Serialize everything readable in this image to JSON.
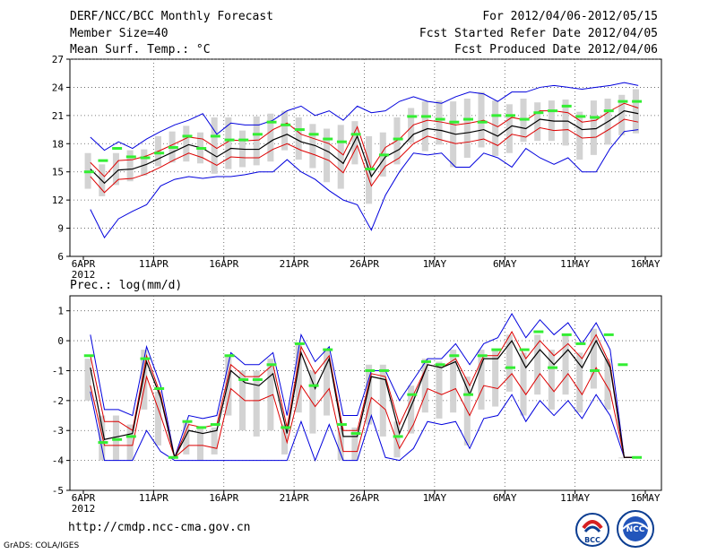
{
  "header": {
    "title": "DERF/NCC/BCC Monthly Forecast",
    "member_size": "Member Size=40",
    "variable": "Mean Surf. Temp.: °C",
    "period": "For 2012/04/06-2012/05/15",
    "started": "Fcst Started Refer Date 2012/04/05",
    "produced": "Fcst Produced Date 2012/04/06"
  },
  "footer": {
    "url": "http://cmdp.ncc-cma.gov.cn",
    "credit": "GrADS: COLA/IGES"
  },
  "logos": {
    "bcc_text": "BCC",
    "ncc_text": "NCC"
  },
  "colors": {
    "max_min": "#0000dd",
    "spread": "#dd0000",
    "mean": "#000000",
    "obs": "#33ee33",
    "box": "#d3d3d3",
    "grid": "#555555"
  },
  "chart_data": [
    {
      "type": "line",
      "panel": "temperature",
      "title": "",
      "xlabel": "",
      "ylabel": "",
      "ylim": [
        6,
        27
      ],
      "yticks": [
        6,
        9,
        12,
        15,
        18,
        21,
        24,
        27
      ],
      "x_tick_labels": [
        {
          "day": 0,
          "label": "6APR"
        },
        {
          "day": 5,
          "label": "11APR"
        },
        {
          "day": 10,
          "label": "16APR"
        },
        {
          "day": 15,
          "label": "21APR"
        },
        {
          "day": 20,
          "label": "26APR"
        },
        {
          "day": 25,
          "label": "1MAY"
        },
        {
          "day": 30,
          "label": "6MAY"
        },
        {
          "day": 35,
          "label": "11MAY"
        },
        {
          "day": 40,
          "label": "16MAY"
        }
      ],
      "year_label": "2012",
      "x_days": [
        0,
        1,
        2,
        3,
        4,
        5,
        6,
        7,
        8,
        9,
        10,
        11,
        12,
        13,
        14,
        15,
        16,
        17,
        18,
        19,
        20,
        21,
        22,
        23,
        24,
        25,
        26,
        27,
        28,
        29,
        30,
        31,
        32,
        33,
        34,
        35,
        36,
        37,
        38,
        39
      ],
      "series": [
        {
          "name": "max",
          "values": [
            18.7,
            17.3,
            18.2,
            17.5,
            18.5,
            19.3,
            20,
            20.5,
            21.2,
            19,
            20.2,
            20,
            20,
            20.5,
            21.5,
            22,
            21,
            21.5,
            20.5,
            22,
            21.3,
            21.5,
            22.5,
            23,
            22.5,
            22.3,
            23,
            23.5,
            23.3,
            22.5,
            23.5,
            23.5,
            24,
            24.2,
            24,
            23.8,
            24,
            24.2,
            24.5,
            24.2
          ]
        },
        {
          "name": "spread_upper",
          "values": [
            16,
            14.5,
            16.2,
            16.3,
            16.7,
            17.3,
            18,
            18.7,
            18.5,
            17.5,
            18.4,
            18.3,
            18.4,
            19.5,
            20.2,
            19,
            18.5,
            18,
            16.8,
            19.8,
            15.3,
            17.6,
            18.5,
            20,
            20.5,
            20.3,
            20,
            20.2,
            20.5,
            19.8,
            20.8,
            20.5,
            21.5,
            21.5,
            21.3,
            20.3,
            20.5,
            21.5,
            22.3,
            21.8
          ]
        },
        {
          "name": "mean",
          "values": [
            15.3,
            13.8,
            15.2,
            15.3,
            15.8,
            16.5,
            17.2,
            17.9,
            17.5,
            16.6,
            17.5,
            17.4,
            17.4,
            18.4,
            19,
            18.2,
            17.8,
            17.1,
            15.9,
            18.8,
            14.5,
            16.6,
            17.4,
            19,
            19.6,
            19.4,
            19,
            19.2,
            19.5,
            18.8,
            19.9,
            19.6,
            20.6,
            20.4,
            20.4,
            19.5,
            19.6,
            20.5,
            21.5,
            21.2
          ]
        },
        {
          "name": "spread_lower",
          "values": [
            14.5,
            12.8,
            14.2,
            14.3,
            14.8,
            15.5,
            16.3,
            17,
            16.5,
            15.7,
            16.6,
            16.5,
            16.5,
            17.4,
            18,
            17.3,
            16.8,
            16.2,
            14.9,
            17.8,
            13.5,
            15.6,
            16.5,
            18,
            18.8,
            18.4,
            18,
            18.2,
            18.5,
            17.8,
            19,
            18.7,
            19.7,
            19.4,
            19.5,
            18.6,
            18.7,
            19.6,
            20.6,
            20.3
          ]
        },
        {
          "name": "min",
          "values": [
            11,
            8,
            10,
            10.8,
            11.5,
            13.5,
            14.2,
            14.5,
            14.3,
            14.5,
            14.5,
            14.7,
            15,
            15,
            16.3,
            15,
            14.2,
            13,
            12,
            11.5,
            8.8,
            12.5,
            15,
            17,
            16.8,
            17,
            15.5,
            15.5,
            17,
            16.5,
            15.5,
            17.5,
            16.5,
            15.8,
            16.5,
            15,
            15,
            17.5,
            19.3,
            19.5
          ]
        },
        {
          "name": "obs",
          "values": [
            15,
            16.2,
            17.5,
            16.6,
            16.5,
            17,
            17.6,
            18.8,
            17.5,
            18.8,
            18.4,
            18.4,
            19,
            20.3,
            20,
            19.5,
            19,
            18.5,
            18.2,
            19,
            15.3,
            16.8,
            18.5,
            20.9,
            20.9,
            20.6,
            20.3,
            20.6,
            20.3,
            21,
            21,
            20.6,
            21.3,
            21.5,
            22,
            20.9,
            20.8,
            21.5,
            22.5,
            22.5
          ]
        },
        {
          "name": "box_top",
          "values": [
            17,
            15.8,
            17,
            17.3,
            17.4,
            18.8,
            19.3,
            19.9,
            19.2,
            20.8,
            20.8,
            19.4,
            20.9,
            21.2,
            21.5,
            20.8,
            20.1,
            19.6,
            20,
            20.4,
            18.8,
            19.2,
            20.8,
            21.8,
            22.5,
            22.6,
            22.5,
            22.8,
            23.5,
            22.6,
            22.2,
            22.8,
            22.4,
            22.6,
            22.7,
            21.4,
            22.6,
            22.8,
            23.2,
            23.8
          ]
        },
        {
          "name": "box_bottom",
          "values": [
            13.2,
            12.4,
            13.6,
            14,
            14.6,
            15.6,
            16,
            16.1,
            15.9,
            14.8,
            15.3,
            15.5,
            15.7,
            16.1,
            17.3,
            16.3,
            15.4,
            13.9,
            13.2,
            15.8,
            11.6,
            14.5,
            15.8,
            18.1,
            17.2,
            17.9,
            15.5,
            16.5,
            17.6,
            16.7,
            17,
            18.2,
            18.3,
            18.3,
            17.8,
            16.3,
            16.8,
            17.9,
            18.9,
            19.1
          ]
        }
      ]
    },
    {
      "type": "line",
      "panel": "precipitation",
      "title": "Prec.: log(mm/d)",
      "xlabel": "",
      "ylabel": "",
      "ylim": [
        -5,
        1.5
      ],
      "yticks": [
        -5,
        -4,
        -3,
        -2,
        -1,
        0,
        1
      ],
      "x_tick_labels": [
        {
          "day": 0,
          "label": "6APR"
        },
        {
          "day": 5,
          "label": "11APR"
        },
        {
          "day": 10,
          "label": "16APR"
        },
        {
          "day": 15,
          "label": "21APR"
        },
        {
          "day": 20,
          "label": "26APR"
        },
        {
          "day": 25,
          "label": "1MAY"
        },
        {
          "day": 30,
          "label": "6MAY"
        },
        {
          "day": 35,
          "label": "11MAY"
        },
        {
          "day": 40,
          "label": "16MAY"
        }
      ],
      "year_label": "2012",
      "x_days": [
        0,
        1,
        2,
        3,
        4,
        5,
        6,
        7,
        8,
        9,
        10,
        11,
        12,
        13,
        14,
        15,
        16,
        17,
        18,
        19,
        20,
        21,
        22,
        23,
        24,
        25,
        26,
        27,
        28,
        29,
        30,
        31,
        32,
        33,
        34,
        35,
        36,
        37,
        38,
        39
      ],
      "series": [
        {
          "name": "max",
          "values": [
            0.2,
            -2.3,
            -2.3,
            -2.5,
            -0.2,
            -1.5,
            -3.9,
            -2.5,
            -2.6,
            -2.5,
            -0.4,
            -0.8,
            -0.8,
            -0.4,
            -2.5,
            0.2,
            -0.7,
            -0.2,
            -2.5,
            -2.5,
            -1,
            -1,
            -2,
            -1.3,
            -0.6,
            -0.6,
            -0.1,
            -0.8,
            -0.1,
            0.1,
            0.9,
            0.1,
            0.7,
            0.2,
            0.6,
            -0.1,
            0.6,
            -0.3,
            -3.9,
            -3.9
          ]
        },
        {
          "name": "spread_upper",
          "values": [
            -0.5,
            -2.7,
            -2.7,
            -3,
            -0.5,
            -1.8,
            -3.9,
            -2.8,
            -2.9,
            -2.8,
            -0.8,
            -1.2,
            -1.2,
            -0.8,
            -2.9,
            -0.2,
            -1.1,
            -0.5,
            -3,
            -3,
            -1.1,
            -1.2,
            -2.8,
            -1.8,
            -0.8,
            -0.9,
            -0.6,
            -1.5,
            -0.5,
            -0.5,
            0.3,
            -0.6,
            0,
            -0.5,
            -0.1,
            -0.6,
            0.2,
            -0.8,
            -3.9,
            -3.9
          ]
        },
        {
          "name": "mean",
          "values": [
            -0.9,
            -3.3,
            -3.2,
            -3.1,
            -0.7,
            -1.9,
            -3.9,
            -3,
            -3.1,
            -3,
            -1,
            -1.4,
            -1.5,
            -1.1,
            -3.1,
            -0.4,
            -1.6,
            -0.6,
            -3.2,
            -3.2,
            -1.2,
            -1.3,
            -3.1,
            -2,
            -0.8,
            -0.9,
            -0.7,
            -1.8,
            -0.6,
            -0.6,
            0,
            -0.9,
            -0.3,
            -0.8,
            -0.3,
            -0.9,
            0,
            -0.9,
            -3.9,
            -3.9
          ]
        },
        {
          "name": "spread_lower",
          "values": [
            -1.5,
            -3.5,
            -3.5,
            -3.5,
            -1.2,
            -2.5,
            -3.9,
            -3.5,
            -3.5,
            -3.6,
            -1.6,
            -2,
            -2,
            -1.8,
            -3.4,
            -1.5,
            -2.2,
            -1.6,
            -3.7,
            -3.7,
            -1.9,
            -2.3,
            -3.6,
            -2.8,
            -1.6,
            -1.8,
            -1.6,
            -2.5,
            -1.5,
            -1.6,
            -1.1,
            -1.8,
            -1.1,
            -1.7,
            -1.1,
            -1.8,
            -0.9,
            -1.7,
            -3.9,
            -3.9
          ]
        },
        {
          "name": "min",
          "values": [
            -1.7,
            -4,
            -4,
            -4,
            -3,
            -3.7,
            -4,
            -4,
            -4,
            -4,
            -4,
            -4,
            -4,
            -4,
            -4,
            -2.7,
            -4,
            -2.8,
            -4,
            -4,
            -2.5,
            -3.9,
            -4,
            -3.6,
            -2.7,
            -2.8,
            -2.7,
            -3.6,
            -2.6,
            -2.5,
            -1.8,
            -2.7,
            -2,
            -2.5,
            -2,
            -2.6,
            -1.8,
            -2.5,
            -3.9,
            -3.9
          ]
        },
        {
          "name": "obs",
          "values": [
            -0.5,
            -3.4,
            -3.3,
            -3.2,
            -0.6,
            -1.6,
            -3.9,
            -2.7,
            -2.9,
            -2.8,
            -0.5,
            -1.3,
            -1.3,
            -0.8,
            -2.9,
            -0.1,
            -1.5,
            -0.3,
            -2.8,
            -3.1,
            -1,
            -1,
            -3.2,
            -1.8,
            -0.7,
            -0.8,
            -0.5,
            -1.8,
            -0.5,
            -0.3,
            -0.9,
            -0.3,
            0.3,
            -0.9,
            0.2,
            -0.1,
            -1,
            0.2,
            -0.8,
            -3.9
          ]
        },
        {
          "name": "box_top",
          "values": [
            -0.6,
            -2.5,
            -2.5,
            -2.8,
            -0.3,
            -1.7,
            -3.9,
            -2.7,
            -2.9,
            -2.9,
            -0.5,
            -1,
            -1,
            -0.6,
            -2.8,
            -0.1,
            -1,
            -0.3,
            -2.9,
            -2.9,
            -0.8,
            -0.8,
            -2.7,
            -1.5,
            -0.6,
            -0.7,
            -0.3,
            -1.2,
            -0.3,
            -0.3,
            0.2,
            -0.4,
            0.2,
            -0.3,
            0.2,
            -0.4,
            0.4,
            -0.6,
            -3.9,
            -3.9
          ]
        },
        {
          "name": "box_bottom",
          "values": [
            -2,
            -4,
            -4,
            -4,
            -2.3,
            -3.5,
            -3.9,
            -3.8,
            -4,
            -3.8,
            -2.5,
            -3,
            -3.2,
            -3,
            -3.8,
            -2.4,
            -3.1,
            -2.5,
            -4,
            -4,
            -2.8,
            -3.2,
            -3.9,
            -3.1,
            -2.4,
            -2.6,
            -2.4,
            -3.5,
            -2.3,
            -2.2,
            -1.7,
            -2.5,
            -1.8,
            -2.3,
            -1.8,
            -2.4,
            -1.6,
            -2.3,
            -3.9,
            -3.9
          ]
        }
      ]
    }
  ]
}
